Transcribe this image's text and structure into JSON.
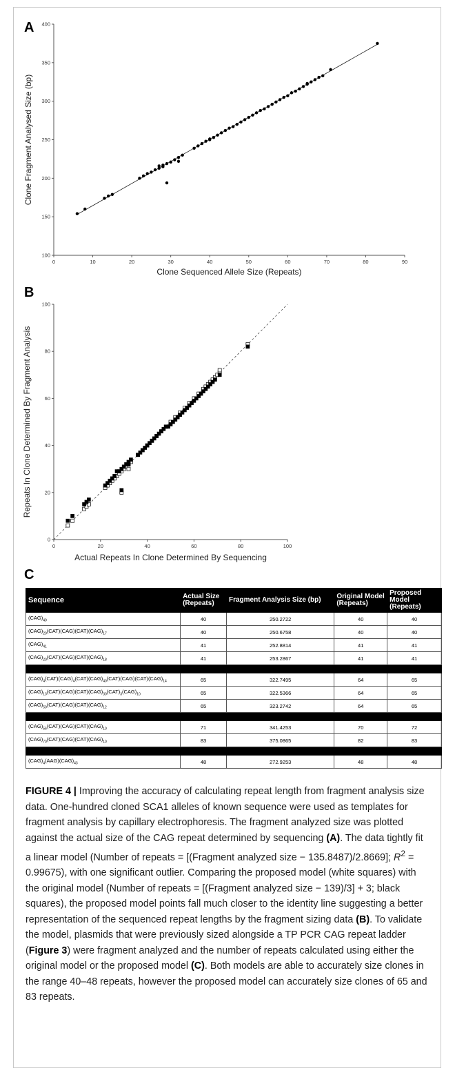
{
  "panels": {
    "a": "A",
    "b": "B",
    "c": "C"
  },
  "chart_data": [
    {
      "type": "scatter",
      "xlabel": "Clone Sequenced Allele Size (Repeats)",
      "ylabel": "Clone Fragment Analysed Size (bp)",
      "xlim": [
        0,
        90
      ],
      "ylim": [
        100,
        400
      ],
      "xticks": [
        "0",
        "10",
        "20",
        "30",
        "40",
        "50",
        "60",
        "70",
        "80",
        "90"
      ],
      "yticks": [
        "100",
        "150",
        "200",
        "250",
        "300",
        "350",
        "400"
      ],
      "fit_line": {
        "slope": 2.8669,
        "intercept": 135.8487,
        "x_range": [
          6,
          83
        ]
      },
      "points": [
        [
          6,
          154
        ],
        [
          8,
          160
        ],
        [
          13,
          174
        ],
        [
          14,
          177
        ],
        [
          15,
          179
        ],
        [
          22,
          200
        ],
        [
          23,
          203
        ],
        [
          24,
          206
        ],
        [
          25,
          208
        ],
        [
          26,
          211
        ],
        [
          27,
          213
        ],
        [
          27,
          216
        ],
        [
          28,
          215
        ],
        [
          28,
          217
        ],
        [
          29,
          194
        ],
        [
          29,
          219
        ],
        [
          30,
          221
        ],
        [
          31,
          224
        ],
        [
          32,
          222
        ],
        [
          32,
          227
        ],
        [
          33,
          230
        ],
        [
          36,
          239
        ],
        [
          37,
          242
        ],
        [
          38,
          245
        ],
        [
          39,
          248
        ],
        [
          40,
          250
        ],
        [
          40,
          251
        ],
        [
          41,
          253
        ],
        [
          41,
          253
        ],
        [
          42,
          256
        ],
        [
          43,
          259
        ],
        [
          44,
          262
        ],
        [
          45,
          265
        ],
        [
          46,
          267
        ],
        [
          47,
          270
        ],
        [
          48,
          273
        ],
        [
          49,
          276
        ],
        [
          50,
          279
        ],
        [
          51,
          282
        ],
        [
          52,
          285
        ],
        [
          53,
          288
        ],
        [
          54,
          290
        ],
        [
          55,
          293
        ],
        [
          56,
          296
        ],
        [
          57,
          299
        ],
        [
          58,
          302
        ],
        [
          59,
          305
        ],
        [
          60,
          307
        ],
        [
          61,
          311
        ],
        [
          62,
          313
        ],
        [
          63,
          316
        ],
        [
          64,
          319
        ],
        [
          65,
          322
        ],
        [
          65,
          323
        ],
        [
          66,
          325
        ],
        [
          67,
          328
        ],
        [
          68,
          331
        ],
        [
          69,
          333
        ],
        [
          71,
          341
        ],
        [
          83,
          375
        ]
      ]
    },
    {
      "type": "scatter",
      "xlabel": "Actual Repeats In Clone Determined By Sequencing",
      "ylabel": "Repeats In Clone Determined By Fragment Analysis",
      "xlim": [
        0,
        100
      ],
      "ylim": [
        0,
        100
      ],
      "xticks": [
        "0",
        "20",
        "40",
        "60",
        "80",
        "100"
      ],
      "yticks": [
        "0",
        "20",
        "40",
        "60",
        "80",
        "100"
      ],
      "identity_line": true,
      "series": [
        {
          "name": "proposed model",
          "marker": "open-square",
          "points": [
            [
              6,
              6
            ],
            [
              8,
              8
            ],
            [
              13,
              13
            ],
            [
              14,
              14
            ],
            [
              15,
              15
            ],
            [
              22,
              22
            ],
            [
              23,
              23
            ],
            [
              24,
              24
            ],
            [
              25,
              25
            ],
            [
              26,
              26
            ],
            [
              27,
              27
            ],
            [
              28,
              28
            ],
            [
              29,
              20
            ],
            [
              29,
              29
            ],
            [
              30,
              30
            ],
            [
              31,
              31
            ],
            [
              32,
              30
            ],
            [
              32,
              32
            ],
            [
              33,
              33
            ],
            [
              36,
              36
            ],
            [
              38,
              38
            ],
            [
              40,
              40
            ],
            [
              42,
              42
            ],
            [
              44,
              44
            ],
            [
              46,
              46
            ],
            [
              48,
              48
            ],
            [
              50,
              50
            ],
            [
              52,
              52
            ],
            [
              54,
              54
            ],
            [
              56,
              56
            ],
            [
              58,
              58
            ],
            [
              60,
              60
            ],
            [
              62,
              62
            ],
            [
              64,
              64
            ],
            [
              65,
              65
            ],
            [
              66,
              66
            ],
            [
              67,
              67
            ],
            [
              68,
              68
            ],
            [
              69,
              69
            ],
            [
              70,
              70
            ],
            [
              71,
              71
            ],
            [
              71,
              72
            ],
            [
              83,
              83
            ]
          ]
        },
        {
          "name": "original model",
          "marker": "filled-square",
          "points": [
            [
              6,
              8
            ],
            [
              8,
              10
            ],
            [
              13,
              15
            ],
            [
              14,
              16
            ],
            [
              15,
              17
            ],
            [
              22,
              23
            ],
            [
              23,
              24
            ],
            [
              24,
              25
            ],
            [
              25,
              26
            ],
            [
              26,
              27
            ],
            [
              27,
              29
            ],
            [
              28,
              29
            ],
            [
              29,
              21
            ],
            [
              29,
              30
            ],
            [
              30,
              31
            ],
            [
              31,
              32
            ],
            [
              32,
              32
            ],
            [
              32,
              33
            ],
            [
              33,
              34
            ],
            [
              36,
              36
            ],
            [
              37,
              37
            ],
            [
              38,
              38
            ],
            [
              39,
              39
            ],
            [
              40,
              40
            ],
            [
              41,
              41
            ],
            [
              42,
              42
            ],
            [
              43,
              43
            ],
            [
              44,
              44
            ],
            [
              45,
              45
            ],
            [
              46,
              46
            ],
            [
              47,
              47
            ],
            [
              48,
              48
            ],
            [
              49,
              48
            ],
            [
              50,
              49
            ],
            [
              51,
              50
            ],
            [
              52,
              51
            ],
            [
              53,
              52
            ],
            [
              54,
              53
            ],
            [
              55,
              54
            ],
            [
              56,
              55
            ],
            [
              57,
              56
            ],
            [
              58,
              57
            ],
            [
              59,
              58
            ],
            [
              60,
              59
            ],
            [
              61,
              60
            ],
            [
              62,
              61
            ],
            [
              63,
              62
            ],
            [
              64,
              63
            ],
            [
              65,
              64
            ],
            [
              66,
              65
            ],
            [
              67,
              66
            ],
            [
              68,
              67
            ],
            [
              69,
              68
            ],
            [
              71,
              70
            ],
            [
              83,
              82
            ]
          ]
        }
      ]
    }
  ],
  "table": {
    "headers": [
      "Sequence",
      "Actual Size (Repeats)",
      "Fragment Analysis Size (bp)",
      "Original Model (Repeats)",
      "Proposed Model (Repeats)"
    ],
    "groups": [
      [
        [
          "(CAG)40",
          "40",
          "250.2722",
          "40",
          "40"
        ],
        [
          "(CAG)20(CAT)(CAG)(CAT)(CAG)17",
          "40",
          "250.6758",
          "40",
          "40"
        ],
        [
          "(CAG)41",
          "41",
          "252.8814",
          "41",
          "41"
        ],
        [
          "(CAG)20(CAT)(CAG)(CAT)(CAG)18",
          "41",
          "253.2867",
          "41",
          "41"
        ]
      ],
      [
        [
          "(CAG)4(CAT)(CAG)4(CAT)(CAG)40(CAT)(CAG)(CAT)(CAG)14",
          "65",
          "322.7495",
          "64",
          "65"
        ],
        [
          "(CAG)13(CAT)(CAG)(CAT)(CAG)30(CAT)3(CAG)10",
          "65",
          "322.5366",
          "64",
          "65"
        ],
        [
          "(CAG)50(CAT)(CAG)(CAT)(CAG)12",
          "65",
          "323.2742",
          "64",
          "65"
        ]
      ],
      [
        [
          "(CAG)56(CAT)(CAG)(CAT)(CAG)10",
          "71",
          "341.4253",
          "70",
          "72"
        ],
        [
          "(CAG)70(CAT)(CAG)(CAT)(CAG)10",
          "83",
          "375.0865",
          "82",
          "83"
        ]
      ],
      [
        [
          "(CAG)4(AAG)(CAG)43",
          "48",
          "272.9253",
          "48",
          "48"
        ]
      ]
    ]
  },
  "caption": {
    "label": "FIGURE 4 |",
    "s1": " Improving the accuracy of calculating repeat length from fragment analysis size data. One-hundred cloned SCA1 alleles of known sequence were used as templates for fragment analysis by capillary electrophoresis. The fragment analyzed size was plotted against the actual size of the CAG repeat determined by sequencing ",
    "ref_a": "(A)",
    "s2": ". The data tightly fit a linear model (Number of repeats = [(Fragment analyzed size − 135.8487)/2.8669]; ",
    "r": "R",
    "sup": "2",
    "s3": " = 0.99675), with one significant outlier. Comparing the proposed model (white squares) with the original model (Number of repeats = [(Fragment analyzed size − 139)/3] + 3; black squares), the proposed model points fall much closer to the identity line suggesting a better representation of the sequenced repeat lengths by the fragment sizing data ",
    "ref_b": "(B)",
    "s4": ". To validate the model, plasmids that were previously sized alongside a TP PCR CAG repeat ladder (",
    "ref_fig3": "Figure 3",
    "s5": ") were fragment analyzed and the number of repeats calculated using either the original model or the proposed model ",
    "ref_c": "(C)",
    "s6": ". Both models are able to accurately size clones in the range 40–48 repeats, however the proposed model can accurately size clones of 65 and 83 repeats."
  }
}
